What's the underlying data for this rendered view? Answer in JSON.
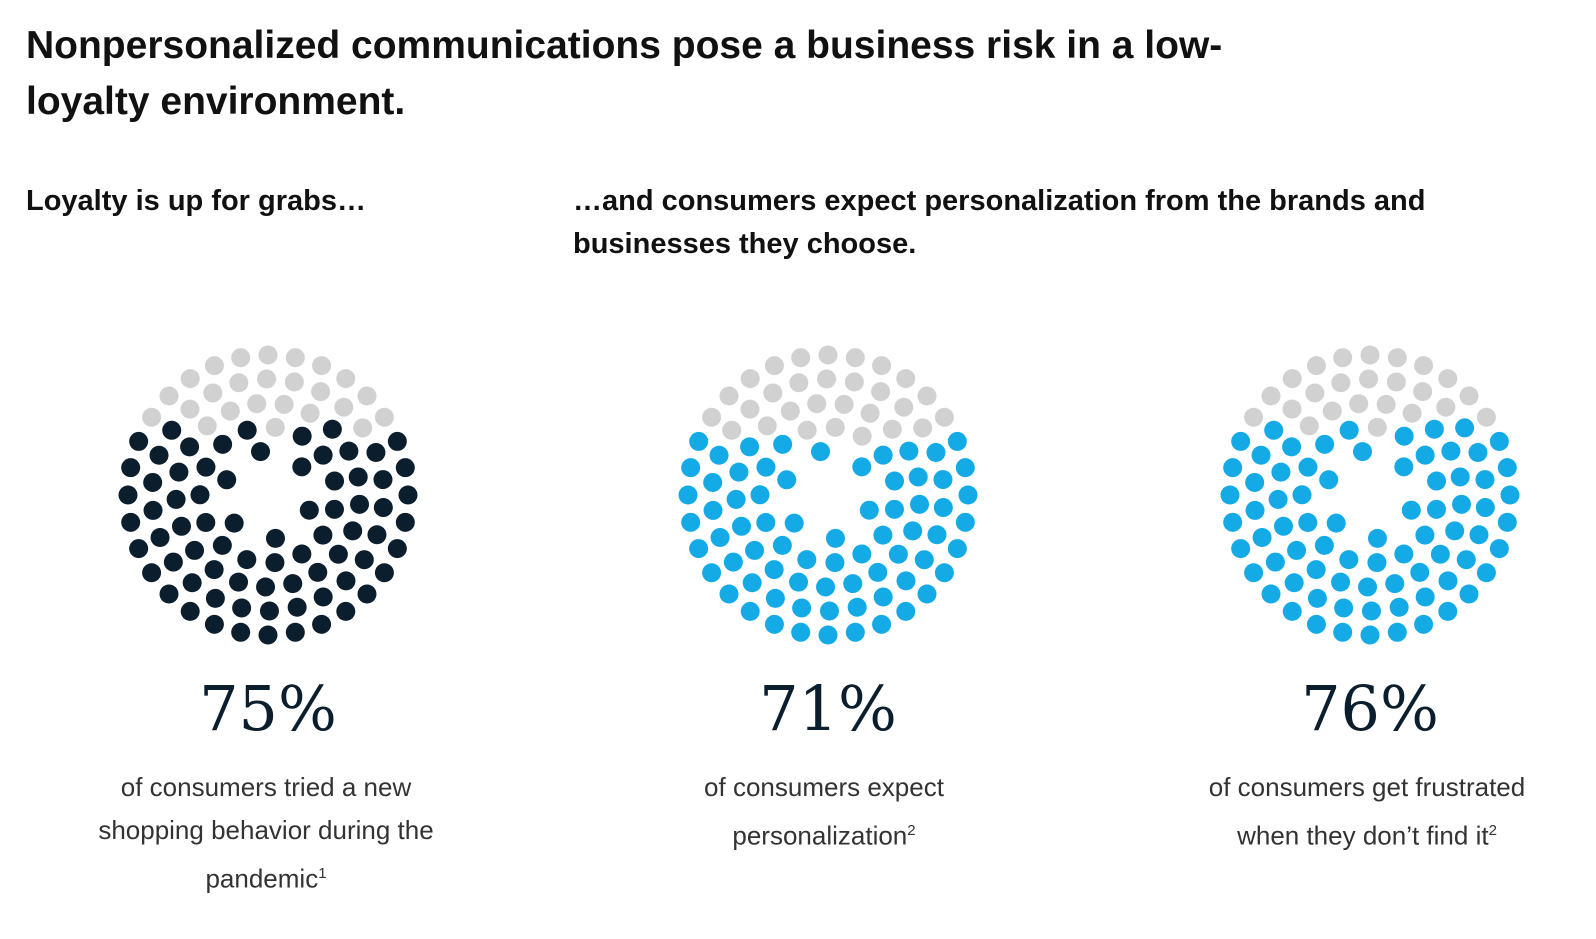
{
  "title": "Nonpersonalized communications pose a business risk in a low-loyalty environment.",
  "subheads": [
    "Loyalty is up for grabs…",
    "…and consumers expect personalization from the brands and businesses they choose."
  ],
  "colors": {
    "filled_dark": "#0b1e2d",
    "filled_blue": "#14aae6",
    "empty": "#d1d1d1"
  },
  "chart_data": [
    {
      "type": "dot-chart",
      "total_dots": 100,
      "value": 75,
      "label": "75%",
      "caption": "of consumers tried a new shopping behavior during the pandemic",
      "footnote": "1",
      "color": "#0b1e2d"
    },
    {
      "type": "dot-chart",
      "total_dots": 100,
      "value": 71,
      "label": "71%",
      "caption": "of consumers expect personalization",
      "footnote": "2",
      "color": "#14aae6"
    },
    {
      "type": "dot-chart",
      "total_dots": 100,
      "value": 76,
      "label": "76%",
      "caption": "of consumers get frustrated when they don’t find it",
      "footnote": "2",
      "color": "#14aae6"
    }
  ]
}
